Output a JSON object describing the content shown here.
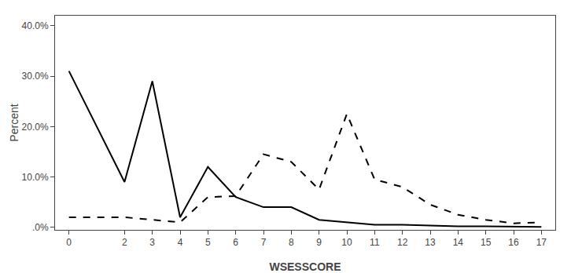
{
  "chart_data": {
    "type": "line",
    "x": [
      0,
      2,
      3,
      4,
      5,
      6,
      7,
      8,
      9,
      10,
      11,
      12,
      13,
      14,
      15,
      16,
      17
    ],
    "series": [
      {
        "color": "#000000",
        "line_style": "solid",
        "values": [
          31.0,
          9.0,
          29.0,
          2.0,
          12.0,
          6.0,
          4.0,
          4.0,
          1.5,
          1.0,
          0.5,
          0.5,
          0.3,
          0.2,
          0.2,
          0.1,
          0.1
        ]
      },
      {
        "color": "#000000",
        "line_style": "dashed",
        "values": [
          2.0,
          2.0,
          1.5,
          1.0,
          6.0,
          6.2,
          14.5,
          13.0,
          7.5,
          22.5,
          9.5,
          8.0,
          4.5,
          2.5,
          1.5,
          0.8,
          1.0
        ]
      }
    ],
    "xlabel": "WSESSCORE",
    "ylabel": "Percent",
    "xlim": [
      -0.5,
      17.5
    ],
    "ylim": [
      -0.5,
      42.0
    ],
    "xticks": [
      0,
      2,
      3,
      4,
      5,
      6,
      7,
      8,
      9,
      10,
      11,
      12,
      13,
      14,
      15,
      16,
      17
    ],
    "yticks": [
      {
        "value": 0.0,
        "label": ".0%"
      },
      {
        "value": 10.0,
        "label": "10.0%"
      },
      {
        "value": 20.0,
        "label": "20.0%"
      },
      {
        "value": 30.0,
        "label": "30.0%"
      },
      {
        "value": 40.0,
        "label": "40.0%"
      }
    ],
    "grid": false
  }
}
